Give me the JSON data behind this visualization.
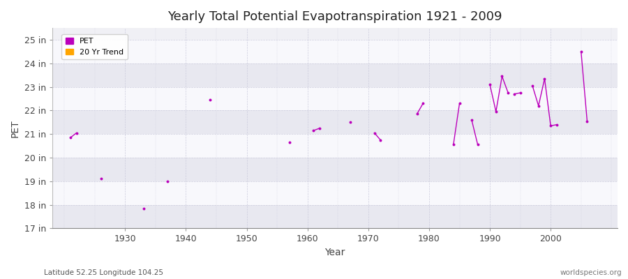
{
  "title": "Yearly Total Potential Evapotranspiration 1921 - 2009",
  "xlabel": "Year",
  "ylabel": "PET",
  "footnote_left": "Latitude 52.25 Longitude 104.25",
  "footnote_right": "worldspecies.org",
  "xlim": [
    1918,
    2011
  ],
  "ylim": [
    17,
    25.5
  ],
  "yticks": [
    17,
    18,
    19,
    20,
    21,
    22,
    23,
    24,
    25
  ],
  "ytick_labels": [
    "17 in",
    "18 in",
    "19 in",
    "20 in",
    "21 in",
    "22 in",
    "23 in",
    "24 in",
    "25 in"
  ],
  "xticks": [
    1930,
    1940,
    1950,
    1960,
    1970,
    1980,
    1990,
    2000
  ],
  "pet_color": "#bb00bb",
  "trend_color": "#ffa500",
  "bg_color": "#ffffff",
  "plot_bg_color": "#f0f0f5",
  "band_colors": [
    "#e8e8f0",
    "#f8f8fc"
  ],
  "grid_color": "#ccccdd",
  "segments": [
    [
      [
        1921,
        20.85
      ],
      [
        1922,
        21.05
      ]
    ],
    [
      [
        1926,
        19.1
      ]
    ],
    [
      [
        1933,
        17.85
      ]
    ],
    [
      [
        1937,
        19.0
      ]
    ],
    [
      [
        1944,
        22.45
      ]
    ],
    [
      [
        1957,
        20.65
      ]
    ],
    [
      [
        1961,
        21.15
      ],
      [
        1962,
        21.25
      ]
    ],
    [
      [
        1967,
        21.5
      ]
    ],
    [
      [
        1971,
        21.05
      ],
      [
        1972,
        20.75
      ]
    ],
    [
      [
        1978,
        21.85
      ],
      [
        1979,
        22.3
      ]
    ],
    [
      [
        1984,
        20.55
      ],
      [
        1985,
        22.3
      ]
    ],
    [
      [
        1987,
        21.6
      ],
      [
        1988,
        20.55
      ]
    ],
    [
      [
        1990,
        23.1
      ],
      [
        1991,
        21.95
      ],
      [
        1992,
        23.45
      ],
      [
        1993,
        22.75
      ]
    ],
    [
      [
        1994,
        22.7
      ],
      [
        1995,
        22.75
      ]
    ],
    [
      [
        1997,
        23.05
      ],
      [
        1998,
        22.2
      ],
      [
        1999,
        23.35
      ],
      [
        2000,
        21.35
      ],
      [
        2001,
        21.4
      ]
    ],
    [
      [
        2005,
        24.5
      ],
      [
        2006,
        21.55
      ]
    ]
  ]
}
